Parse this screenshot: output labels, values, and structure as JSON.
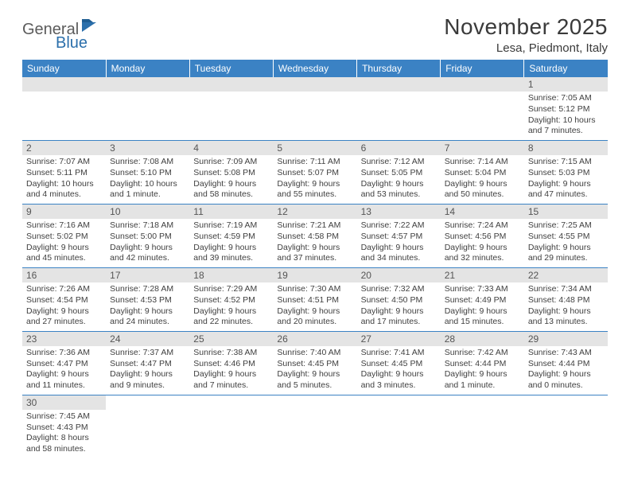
{
  "logo": {
    "general": "General",
    "blue": "Blue",
    "flag_color": "#2b6fab"
  },
  "title": "November 2025",
  "location": "Lesa, Piedmont, Italy",
  "colors": {
    "header_bg": "#3b82c4",
    "header_fg": "#ffffff",
    "daynum_bg": "#e4e4e4",
    "rule": "#3b82c4",
    "text": "#3f3f3f"
  },
  "weekdays": [
    "Sunday",
    "Monday",
    "Tuesday",
    "Wednesday",
    "Thursday",
    "Friday",
    "Saturday"
  ],
  "weeks": [
    [
      null,
      null,
      null,
      null,
      null,
      null,
      {
        "n": "1",
        "sunrise": "7:05 AM",
        "sunset": "5:12 PM",
        "daylight": "10 hours and 7 minutes."
      }
    ],
    [
      {
        "n": "2",
        "sunrise": "7:07 AM",
        "sunset": "5:11 PM",
        "daylight": "10 hours and 4 minutes."
      },
      {
        "n": "3",
        "sunrise": "7:08 AM",
        "sunset": "5:10 PM",
        "daylight": "10 hours and 1 minute."
      },
      {
        "n": "4",
        "sunrise": "7:09 AM",
        "sunset": "5:08 PM",
        "daylight": "9 hours and 58 minutes."
      },
      {
        "n": "5",
        "sunrise": "7:11 AM",
        "sunset": "5:07 PM",
        "daylight": "9 hours and 55 minutes."
      },
      {
        "n": "6",
        "sunrise": "7:12 AM",
        "sunset": "5:05 PM",
        "daylight": "9 hours and 53 minutes."
      },
      {
        "n": "7",
        "sunrise": "7:14 AM",
        "sunset": "5:04 PM",
        "daylight": "9 hours and 50 minutes."
      },
      {
        "n": "8",
        "sunrise": "7:15 AM",
        "sunset": "5:03 PM",
        "daylight": "9 hours and 47 minutes."
      }
    ],
    [
      {
        "n": "9",
        "sunrise": "7:16 AM",
        "sunset": "5:02 PM",
        "daylight": "9 hours and 45 minutes."
      },
      {
        "n": "10",
        "sunrise": "7:18 AM",
        "sunset": "5:00 PM",
        "daylight": "9 hours and 42 minutes."
      },
      {
        "n": "11",
        "sunrise": "7:19 AM",
        "sunset": "4:59 PM",
        "daylight": "9 hours and 39 minutes."
      },
      {
        "n": "12",
        "sunrise": "7:21 AM",
        "sunset": "4:58 PM",
        "daylight": "9 hours and 37 minutes."
      },
      {
        "n": "13",
        "sunrise": "7:22 AM",
        "sunset": "4:57 PM",
        "daylight": "9 hours and 34 minutes."
      },
      {
        "n": "14",
        "sunrise": "7:24 AM",
        "sunset": "4:56 PM",
        "daylight": "9 hours and 32 minutes."
      },
      {
        "n": "15",
        "sunrise": "7:25 AM",
        "sunset": "4:55 PM",
        "daylight": "9 hours and 29 minutes."
      }
    ],
    [
      {
        "n": "16",
        "sunrise": "7:26 AM",
        "sunset": "4:54 PM",
        "daylight": "9 hours and 27 minutes."
      },
      {
        "n": "17",
        "sunrise": "7:28 AM",
        "sunset": "4:53 PM",
        "daylight": "9 hours and 24 minutes."
      },
      {
        "n": "18",
        "sunrise": "7:29 AM",
        "sunset": "4:52 PM",
        "daylight": "9 hours and 22 minutes."
      },
      {
        "n": "19",
        "sunrise": "7:30 AM",
        "sunset": "4:51 PM",
        "daylight": "9 hours and 20 minutes."
      },
      {
        "n": "20",
        "sunrise": "7:32 AM",
        "sunset": "4:50 PM",
        "daylight": "9 hours and 17 minutes."
      },
      {
        "n": "21",
        "sunrise": "7:33 AM",
        "sunset": "4:49 PM",
        "daylight": "9 hours and 15 minutes."
      },
      {
        "n": "22",
        "sunrise": "7:34 AM",
        "sunset": "4:48 PM",
        "daylight": "9 hours and 13 minutes."
      }
    ],
    [
      {
        "n": "23",
        "sunrise": "7:36 AM",
        "sunset": "4:47 PM",
        "daylight": "9 hours and 11 minutes."
      },
      {
        "n": "24",
        "sunrise": "7:37 AM",
        "sunset": "4:47 PM",
        "daylight": "9 hours and 9 minutes."
      },
      {
        "n": "25",
        "sunrise": "7:38 AM",
        "sunset": "4:46 PM",
        "daylight": "9 hours and 7 minutes."
      },
      {
        "n": "26",
        "sunrise": "7:40 AM",
        "sunset": "4:45 PM",
        "daylight": "9 hours and 5 minutes."
      },
      {
        "n": "27",
        "sunrise": "7:41 AM",
        "sunset": "4:45 PM",
        "daylight": "9 hours and 3 minutes."
      },
      {
        "n": "28",
        "sunrise": "7:42 AM",
        "sunset": "4:44 PM",
        "daylight": "9 hours and 1 minute."
      },
      {
        "n": "29",
        "sunrise": "7:43 AM",
        "sunset": "4:44 PM",
        "daylight": "9 hours and 0 minutes."
      }
    ],
    [
      {
        "n": "30",
        "sunrise": "7:45 AM",
        "sunset": "4:43 PM",
        "daylight": "8 hours and 58 minutes."
      },
      null,
      null,
      null,
      null,
      null,
      null
    ]
  ]
}
